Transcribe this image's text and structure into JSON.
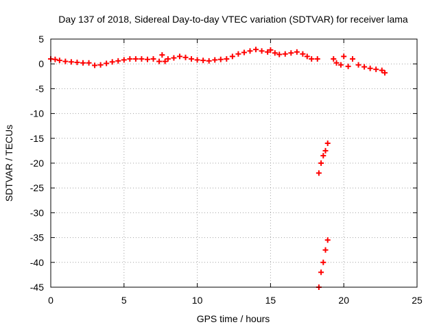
{
  "chart_data": {
    "type": "scatter",
    "title": "Day 137 of 2018, Sidereal Day-to-day VTEC variation (SDTVAR) for receiver lama",
    "xlabel": "GPS time / hours",
    "ylabel": "SDTVAR / TECUs",
    "xlim": [
      0,
      25
    ],
    "ylim": [
      -45,
      5
    ],
    "xticks": [
      0,
      5,
      10,
      15,
      20,
      25
    ],
    "xtick_labels": [
      "0",
      "5",
      "10",
      "15",
      "20",
      "25"
    ],
    "yticks": [
      5,
      0,
      -5,
      -10,
      -15,
      -20,
      -25,
      -30,
      -35,
      -40,
      -45
    ],
    "ytick_labels": [
      "5",
      "0",
      "-5",
      "-10",
      "-15",
      "-20",
      "-25",
      "-30",
      "-35",
      "-40",
      "-45"
    ],
    "grid": true,
    "marker": "plus",
    "color": "#ff0000",
    "series": [
      {
        "name": "SDTVAR",
        "x": [
          0.0,
          0.3,
          0.6,
          1.0,
          1.4,
          1.8,
          2.2,
          2.6,
          3.0,
          3.4,
          3.8,
          4.2,
          4.6,
          5.0,
          5.4,
          5.8,
          6.2,
          6.6,
          7.0,
          7.4,
          7.6,
          7.8,
          8.0,
          8.4,
          8.8,
          9.2,
          9.6,
          10.0,
          10.4,
          10.8,
          11.2,
          11.6,
          12.0,
          12.4,
          12.8,
          13.2,
          13.6,
          14.0,
          14.4,
          14.8,
          15.0,
          15.3,
          15.6,
          16.0,
          16.4,
          16.8,
          17.2,
          17.5,
          17.8,
          18.2,
          19.3,
          19.5,
          19.8,
          20.0,
          20.3,
          20.6,
          21.0,
          21.4,
          21.8,
          22.2,
          22.6,
          22.8,
          18.3,
          18.45,
          18.6,
          18.75,
          18.9,
          18.3,
          18.45,
          18.6,
          18.75,
          18.9
        ],
        "y": [
          1.0,
          0.9,
          0.7,
          0.5,
          0.4,
          0.3,
          0.2,
          0.2,
          -0.3,
          -0.2,
          0.1,
          0.4,
          0.6,
          0.8,
          1.0,
          1.0,
          1.0,
          0.9,
          1.0,
          0.5,
          1.8,
          0.5,
          1.0,
          1.2,
          1.5,
          1.3,
          1.0,
          0.8,
          0.7,
          0.6,
          0.8,
          0.9,
          1.0,
          1.5,
          2.0,
          2.3,
          2.6,
          2.9,
          2.6,
          2.4,
          2.8,
          2.2,
          1.9,
          2.0,
          2.2,
          2.4,
          2.0,
          1.5,
          1.0,
          1.0,
          1.0,
          0.2,
          -0.2,
          1.5,
          -0.5,
          1.0,
          -0.2,
          -0.6,
          -0.9,
          -1.1,
          -1.3,
          -1.8,
          -22.0,
          -20.0,
          -18.5,
          -17.5,
          -16.0,
          -45.0,
          -42.0,
          -40.0,
          -37.5,
          -35.5
        ]
      }
    ]
  }
}
